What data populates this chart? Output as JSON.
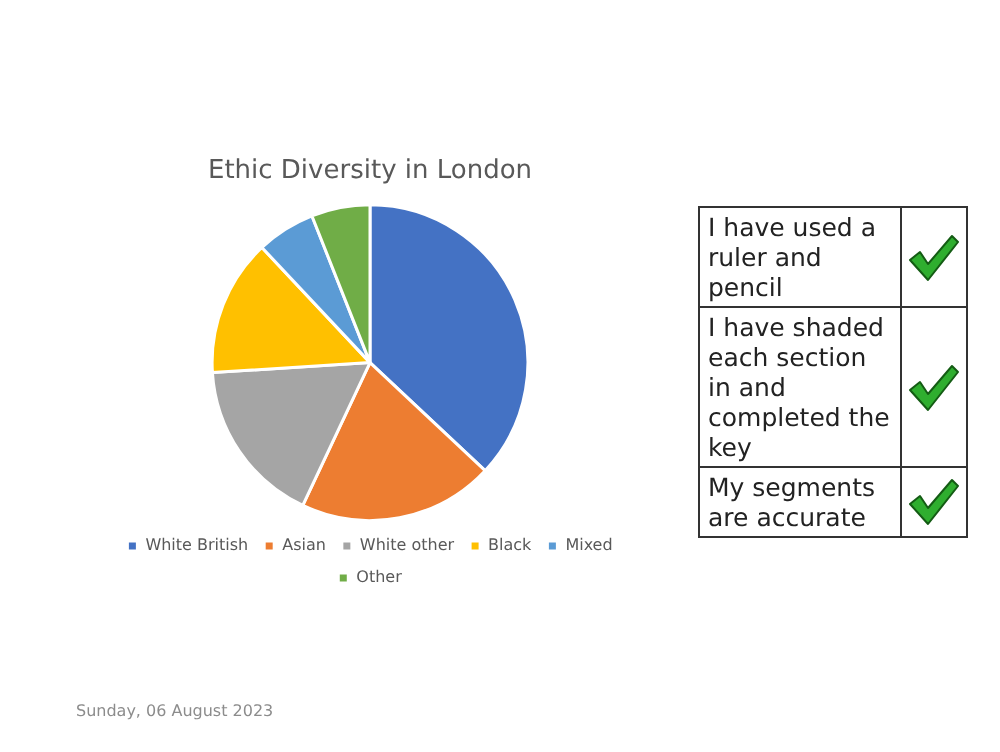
{
  "chart_data": [
    {
      "type": "pie",
      "title": "Ethic Diversity in London",
      "categories": [
        "White British",
        "Asian",
        "White other",
        "Black",
        "Mixed",
        "Other"
      ],
      "values": [
        37,
        20,
        17,
        14,
        6,
        6
      ],
      "colors": [
        "#4472c4",
        "#ed7d31",
        "#a5a5a5",
        "#ffc000",
        "#5b9bd5",
        "#70ad47"
      ],
      "legend": "bottom",
      "annotations": [
        "Sunday, 06 August 2023"
      ]
    },
    {
      "type": "other",
      "annotations": [
        "I have used a ruler and pencil",
        "I have shaded each section in and completed the key",
        "My segments are accurate"
      ]
    }
  ]
}
